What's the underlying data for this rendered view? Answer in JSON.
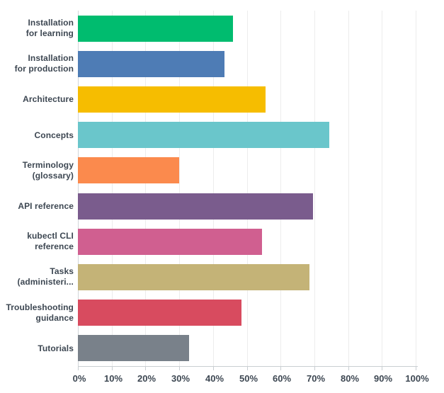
{
  "chart_data": {
    "type": "bar",
    "orientation": "horizontal",
    "title": "",
    "xlabel": "",
    "ylabel": "",
    "categories": [
      "Installation for learning",
      "Installation for production",
      "Architecture",
      "Concepts",
      "Terminology (glossary)",
      "API reference",
      "kubectl CLI reference",
      "Tasks (administeri...",
      "Troubleshooting guidance",
      "Tutorials"
    ],
    "category_display_lines": [
      [
        "Installation",
        "for learning"
      ],
      [
        "Installation",
        "for production"
      ],
      [
        "Architecture"
      ],
      [
        "Concepts"
      ],
      [
        "Terminology",
        "(glossary)"
      ],
      [
        "API reference"
      ],
      [
        "kubectl CLI",
        "reference"
      ],
      [
        "Tasks",
        "(administeri..."
      ],
      [
        "Troubleshooting",
        "guidance"
      ],
      [
        "Tutorials"
      ]
    ],
    "values": [
      46,
      43.5,
      55.5,
      74.5,
      30,
      69.5,
      54.5,
      68.5,
      48.5,
      33
    ],
    "unit": "%",
    "bar_colors": [
      "#00BC6F",
      "#4E7CB5",
      "#F6BD00",
      "#6AC6CB",
      "#FB8A4D",
      "#7A5C8D",
      "#D05F90",
      "#C4B377",
      "#D84B5F",
      "#79818A"
    ],
    "xlim": [
      0,
      100
    ],
    "x_ticks": [
      "0%",
      "10%",
      "20%",
      "30%",
      "40%",
      "50%",
      "60%",
      "70%",
      "80%",
      "90%",
      "100%"
    ],
    "grid": true,
    "legend": false
  },
  "colors": {
    "background": "#FFFFFF",
    "label_text": "#3D4752",
    "axis_line": "#C9CED2",
    "gridline": "#ECECEC"
  }
}
